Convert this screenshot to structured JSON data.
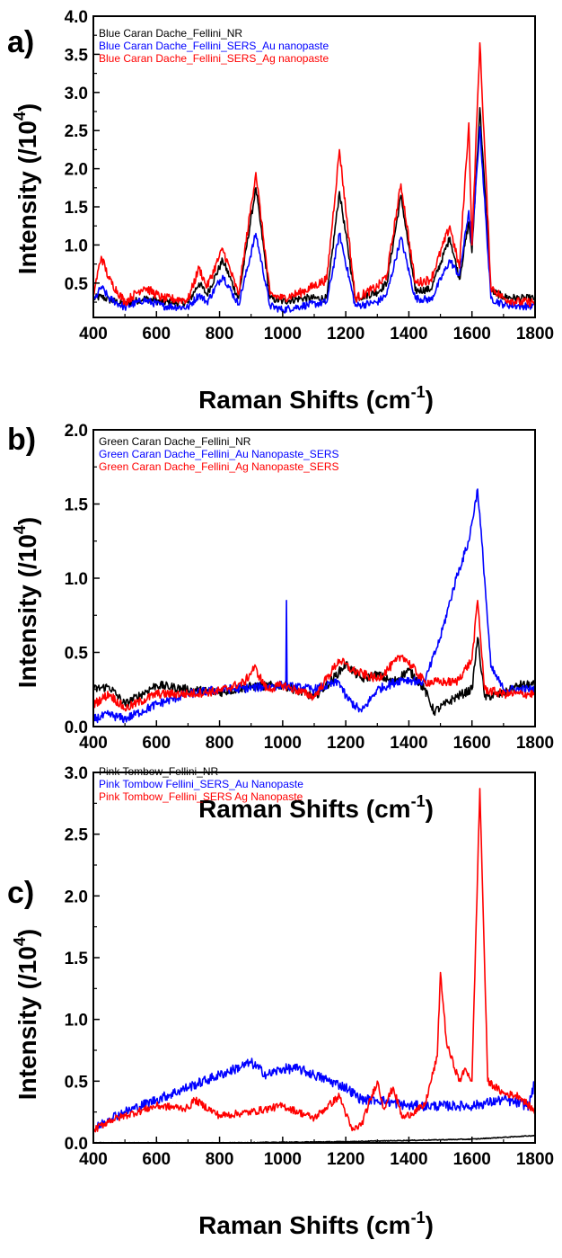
{
  "chart_data": [
    {
      "type": "line",
      "panel_label": "a)",
      "xlabel": "Raman Shifts (cm",
      "xlabel_sup": "-1",
      "xlabel_close": ")",
      "ylabel": "Intensity (/10",
      "ylabel_sup": "4",
      "ylabel_close": ")",
      "xlim": [
        400,
        1800
      ],
      "ylim": [
        0.05,
        4.0
      ],
      "x_ticks": [
        400,
        600,
        800,
        1000,
        1200,
        1400,
        1600,
        1800
      ],
      "y_ticks": [
        0.5,
        1.0,
        1.5,
        2.0,
        2.5,
        3.0,
        3.5,
        4.0
      ],
      "y_tick_labels": [
        "0.5",
        "1.0",
        "1.5",
        "2.0",
        "2.5",
        "3.0",
        "3.5",
        "4.0"
      ],
      "grid": false,
      "legend_position": "top-left",
      "series": [
        {
          "name": "Blue Caran Dache_Fellini_NR",
          "color": "#000000",
          "baseline": 0.28,
          "noise": 0.05,
          "x": [
            400,
            425,
            450,
            500,
            560,
            620,
            700,
            735,
            760,
            810,
            860,
            915,
            960,
            1000,
            1060,
            1140,
            1180,
            1230,
            1300,
            1330,
            1375,
            1420,
            1470,
            1530,
            1560,
            1590,
            1600,
            1625,
            1660,
            1700,
            1750,
            1800
          ],
          "y": [
            0.3,
            0.32,
            0.28,
            0.22,
            0.3,
            0.25,
            0.24,
            0.5,
            0.35,
            0.8,
            0.3,
            1.75,
            0.3,
            0.26,
            0.3,
            0.3,
            1.7,
            0.3,
            0.38,
            0.5,
            1.65,
            0.4,
            0.42,
            1.1,
            0.55,
            1.3,
            0.9,
            2.8,
            0.4,
            0.32,
            0.3,
            0.3
          ]
        },
        {
          "name": "Blue Caran Dache_Fellini_SERS_Au nanopaste",
          "color": "#0000ff",
          "baseline": 0.22,
          "noise": 0.05,
          "x": [
            400,
            425,
            450,
            500,
            560,
            620,
            700,
            735,
            760,
            810,
            860,
            915,
            960,
            1000,
            1060,
            1140,
            1180,
            1230,
            1300,
            1330,
            1375,
            1420,
            1470,
            1530,
            1560,
            1590,
            1600,
            1625,
            1660,
            1700,
            1750,
            1800
          ],
          "y": [
            0.25,
            0.45,
            0.3,
            0.18,
            0.28,
            0.2,
            0.18,
            0.35,
            0.25,
            0.6,
            0.22,
            1.15,
            0.2,
            0.15,
            0.2,
            0.25,
            1.15,
            0.2,
            0.25,
            0.35,
            1.1,
            0.3,
            0.28,
            0.8,
            0.6,
            1.45,
            1.0,
            2.55,
            0.3,
            0.22,
            0.2,
            0.2
          ]
        },
        {
          "name": "Blue Caran Dache_Fellini_SERS_Ag nanopaste",
          "color": "#ff0000",
          "baseline": 0.3,
          "noise": 0.06,
          "x": [
            400,
            425,
            450,
            500,
            560,
            620,
            700,
            735,
            760,
            810,
            860,
            915,
            960,
            1000,
            1060,
            1140,
            1180,
            1230,
            1300,
            1330,
            1375,
            1420,
            1470,
            1530,
            1560,
            1590,
            1600,
            1625,
            1660,
            1700,
            1750,
            1800
          ],
          "y": [
            0.35,
            0.85,
            0.55,
            0.25,
            0.45,
            0.3,
            0.28,
            0.7,
            0.45,
            0.95,
            0.35,
            1.95,
            0.35,
            0.3,
            0.38,
            0.55,
            2.25,
            0.3,
            0.45,
            0.6,
            1.8,
            0.5,
            0.55,
            1.25,
            0.7,
            2.6,
            1.0,
            3.65,
            0.45,
            0.3,
            0.25,
            0.25
          ]
        }
      ]
    },
    {
      "type": "line",
      "panel_label": "b)",
      "xlabel": "Raman Shifts (cm",
      "xlabel_sup": "-1",
      "xlabel_close": ")",
      "ylabel": "Intensity (/10",
      "ylabel_sup": "4",
      "ylabel_close": ")",
      "xlim": [
        400,
        1800
      ],
      "ylim": [
        0.0,
        2.0
      ],
      "x_ticks": [
        400,
        600,
        800,
        1000,
        1200,
        1400,
        1600,
        1800
      ],
      "y_ticks": [
        0.0,
        0.5,
        1.0,
        1.5,
        2.0
      ],
      "y_tick_labels": [
        "0.0",
        "0.5",
        "1.0",
        "1.5",
        "2.0"
      ],
      "grid": false,
      "legend_position": "top-left",
      "series": [
        {
          "name": "Green Caran Dache_Fellini_NR",
          "color": "#000000",
          "baseline": 0.25,
          "noise": 0.03,
          "x": [
            400,
            450,
            500,
            600,
            700,
            800,
            900,
            1000,
            1100,
            1150,
            1200,
            1250,
            1300,
            1350,
            1400,
            1450,
            1480,
            1550,
            1600,
            1618,
            1640,
            1700,
            1750,
            1800
          ],
          "y": [
            0.25,
            0.27,
            0.15,
            0.28,
            0.25,
            0.23,
            0.27,
            0.28,
            0.2,
            0.3,
            0.42,
            0.32,
            0.35,
            0.3,
            0.38,
            0.25,
            0.1,
            0.2,
            0.25,
            0.6,
            0.2,
            0.22,
            0.28,
            0.28
          ]
        },
        {
          "name": "Green Caran Dache_Fellini_Au Nanopaste_SERS",
          "color": "#0000ff",
          "baseline": 0.2,
          "noise": 0.03,
          "x": [
            400,
            450,
            500,
            600,
            700,
            800,
            900,
            1000,
            1010,
            1012,
            1014,
            1020,
            1100,
            1180,
            1200,
            1250,
            1300,
            1380,
            1450,
            1500,
            1550,
            1590,
            1618,
            1640,
            1660,
            1700,
            1750,
            1800
          ],
          "y": [
            0.05,
            0.08,
            0.05,
            0.15,
            0.22,
            0.25,
            0.26,
            0.28,
            0.27,
            0.85,
            0.27,
            0.27,
            0.25,
            0.3,
            0.2,
            0.1,
            0.25,
            0.32,
            0.3,
            0.6,
            1.0,
            1.25,
            1.6,
            1.0,
            0.4,
            0.25,
            0.25,
            0.25
          ]
        },
        {
          "name": "Green Caran Dache_Fellini_Ag Nanopaste_SERS",
          "color": "#ff0000",
          "baseline": 0.22,
          "noise": 0.03,
          "x": [
            400,
            450,
            500,
            600,
            700,
            800,
            880,
            910,
            950,
            1000,
            1100,
            1180,
            1220,
            1300,
            1380,
            1450,
            1550,
            1600,
            1618,
            1640,
            1700,
            1750,
            1800
          ],
          "y": [
            0.15,
            0.22,
            0.12,
            0.22,
            0.22,
            0.24,
            0.3,
            0.4,
            0.25,
            0.28,
            0.2,
            0.45,
            0.38,
            0.32,
            0.48,
            0.3,
            0.3,
            0.45,
            0.85,
            0.25,
            0.22,
            0.22,
            0.22
          ]
        }
      ]
    },
    {
      "type": "line",
      "panel_label": "c)",
      "xlabel": "Raman Shifts (cm",
      "xlabel_sup": "-1",
      "xlabel_close": ")",
      "ylabel": "Intensity (/10",
      "ylabel_sup": "4",
      "ylabel_close": ")",
      "xlim": [
        400,
        1800
      ],
      "ylim": [
        0.0,
        3.0
      ],
      "x_ticks": [
        400,
        600,
        800,
        1000,
        1200,
        1400,
        1600,
        1800
      ],
      "y_ticks": [
        0.0,
        0.5,
        1.0,
        1.5,
        2.0,
        2.5,
        3.0
      ],
      "y_tick_labels": [
        "0.0",
        "0.5",
        "1.0",
        "1.5",
        "2.0",
        "2.5",
        "3.0"
      ],
      "grid": false,
      "legend_position": "top-left",
      "series": [
        {
          "name": "Pink Tombow_Fellini_NR",
          "color": "#000000",
          "baseline": 0.0,
          "noise": 0.003,
          "x": [
            400,
            800,
            1200,
            1600,
            1800
          ],
          "y": [
            0.0,
            0.0,
            0.01,
            0.03,
            0.06
          ]
        },
        {
          "name": "Pink Tombow Fellini_SERS_Au Nanopaste",
          "color": "#0000ff",
          "baseline": 0.3,
          "noise": 0.04,
          "x": [
            400,
            450,
            500,
            600,
            700,
            800,
            900,
            950,
            1000,
            1050,
            1100,
            1150,
            1200,
            1250,
            1300,
            1400,
            1500,
            1600,
            1700,
            1780,
            1800
          ],
          "y": [
            0.1,
            0.2,
            0.25,
            0.35,
            0.45,
            0.55,
            0.65,
            0.55,
            0.6,
            0.6,
            0.55,
            0.5,
            0.45,
            0.35,
            0.35,
            0.3,
            0.3,
            0.3,
            0.35,
            0.3,
            0.5
          ]
        },
        {
          "name": "Pink Tombow_Fellini_SERS Ag Nanopaste",
          "color": "#ff0000",
          "baseline": 0.25,
          "noise": 0.03,
          "x": [
            400,
            450,
            500,
            600,
            700,
            720,
            800,
            900,
            1000,
            1100,
            1180,
            1220,
            1250,
            1300,
            1320,
            1350,
            1380,
            1450,
            1490,
            1500,
            1520,
            1560,
            1580,
            1600,
            1625,
            1650,
            1700,
            1750,
            1800
          ],
          "y": [
            0.1,
            0.18,
            0.22,
            0.3,
            0.28,
            0.35,
            0.22,
            0.25,
            0.3,
            0.2,
            0.38,
            0.1,
            0.15,
            0.5,
            0.28,
            0.45,
            0.2,
            0.3,
            0.7,
            1.38,
            0.8,
            0.5,
            0.6,
            0.5,
            2.87,
            0.5,
            0.4,
            0.38,
            0.25
          ]
        }
      ]
    }
  ]
}
